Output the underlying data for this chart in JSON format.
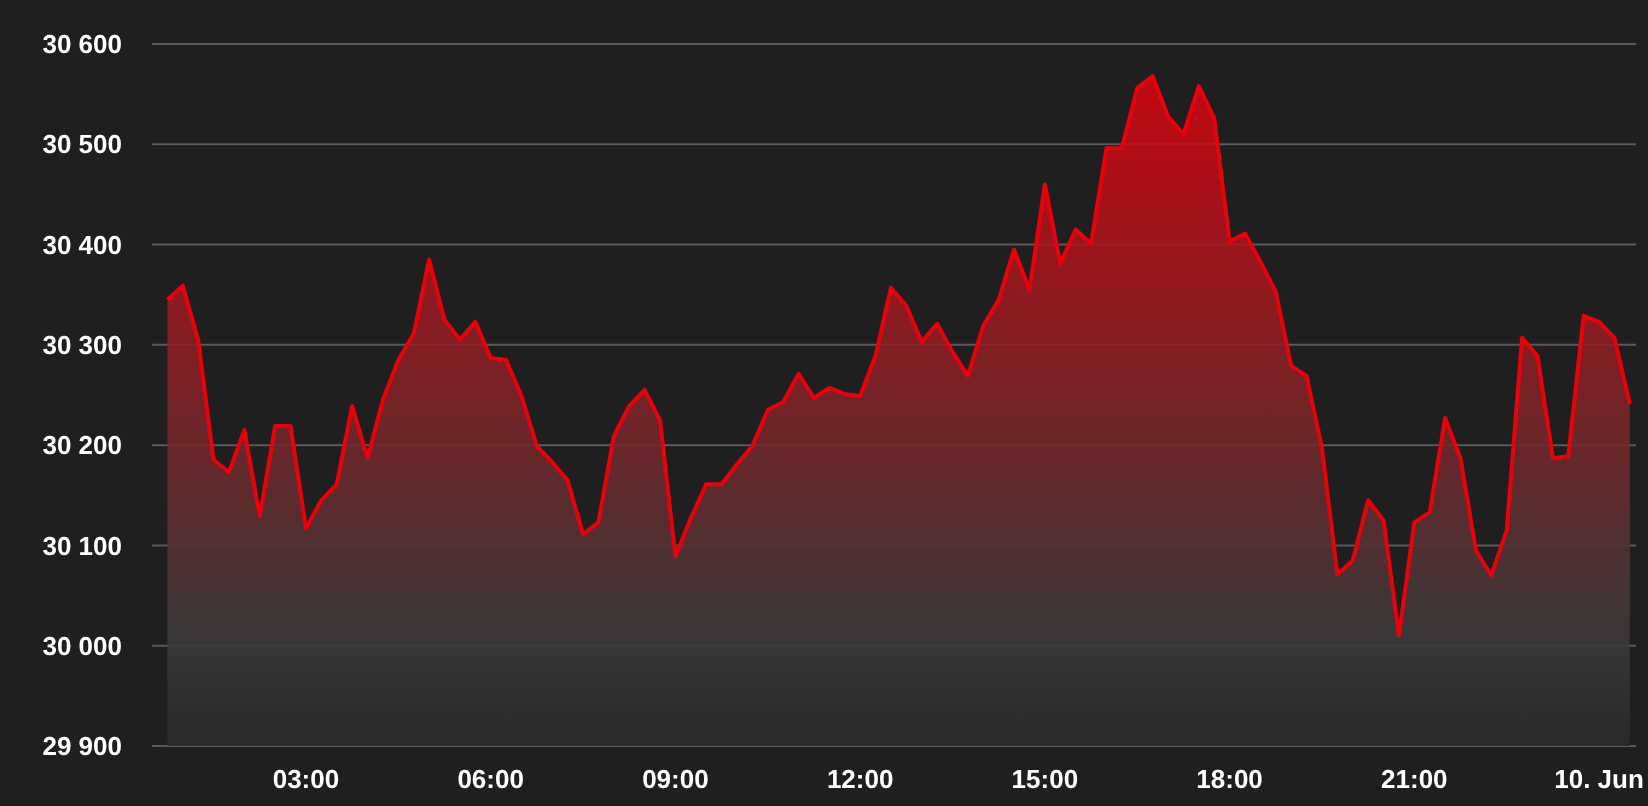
{
  "chart_data": {
    "type": "area",
    "x": [
      0.75,
      1,
      1.25,
      1.5,
      1.75,
      2,
      2.25,
      2.5,
      2.75,
      3,
      3.25,
      3.5,
      3.75,
      4,
      4.25,
      4.5,
      4.75,
      5,
      5.25,
      5.5,
      5.75,
      6,
      6.25,
      6.5,
      6.75,
      7,
      7.25,
      7.5,
      7.75,
      8,
      8.25,
      8.5,
      8.75,
      9,
      9.25,
      9.5,
      9.75,
      10,
      10.25,
      10.5,
      10.75,
      11,
      11.25,
      11.5,
      11.75,
      12,
      12.25,
      12.5,
      12.75,
      13,
      13.25,
      13.5,
      13.75,
      14,
      14.25,
      14.5,
      14.75,
      15,
      15.25,
      15.5,
      15.75,
      16,
      16.25,
      16.5,
      16.75,
      17,
      17.25,
      17.5,
      17.75,
      18,
      18.25,
      18.5,
      18.75,
      19,
      19.25,
      19.5,
      19.75,
      20,
      20.25,
      20.5,
      20.75,
      21,
      21.25,
      21.5,
      21.75,
      22,
      22.25,
      22.5,
      22.75,
      23,
      23.25,
      23.5,
      23.75,
      24,
      24.25,
      24.5
    ],
    "series": [
      {
        "color": "#e8000b",
        "values": [
          30345,
          30359,
          30305,
          30185,
          30173,
          30215,
          30129,
          30219,
          30219,
          30117,
          30145,
          30161,
          30239,
          30187,
          30245,
          30285,
          30311,
          30385,
          30325,
          30305,
          30323,
          30287,
          30285,
          30249,
          30199,
          30183,
          30165,
          30111,
          30123,
          30209,
          30239,
          30255,
          30225,
          30089,
          30127,
          30161,
          30161,
          30181,
          30199,
          30235,
          30243,
          30271,
          30247,
          30257,
          30251,
          30249,
          30289,
          30357,
          30339,
          30303,
          30321,
          30293,
          30269,
          30319,
          30345,
          30395,
          30355,
          30460,
          30381,
          30415,
          30401,
          30496,
          30496,
          30556,
          30568,
          30528,
          30510,
          30558,
          30526,
          30403,
          30411,
          30383,
          30353,
          30279,
          30269,
          30197,
          30071,
          30085,
          30145,
          30125,
          30010,
          30123,
          30133,
          30227,
          30187,
          30095,
          30070,
          30115,
          30307,
          30289,
          30187,
          30189,
          30329,
          30323,
          30307,
          30241
        ]
      }
    ],
    "xlim": [
      0.5,
      24.6
    ],
    "xticks": [
      {
        "value": 3,
        "label": "03:00"
      },
      {
        "value": 6,
        "label": "06:00"
      },
      {
        "value": 9,
        "label": "09:00"
      },
      {
        "value": 12,
        "label": "12:00"
      },
      {
        "value": 15,
        "label": "15:00"
      },
      {
        "value": 18,
        "label": "18:00"
      },
      {
        "value": 21,
        "label": "21:00"
      },
      {
        "value": 24,
        "label": "10. Jun"
      }
    ],
    "ylim": [
      29900,
      30600
    ],
    "yticks": [
      {
        "value": 29900,
        "label": "29 900"
      },
      {
        "value": 30000,
        "label": "30 000"
      },
      {
        "value": 30100,
        "label": "30 100"
      },
      {
        "value": 30200,
        "label": "30 200"
      },
      {
        "value": 30300,
        "label": "30 300"
      },
      {
        "value": 30400,
        "label": "30 400"
      },
      {
        "value": 30500,
        "label": "30 500"
      },
      {
        "value": 30600,
        "label": "30 600"
      }
    ],
    "grid": "y"
  }
}
